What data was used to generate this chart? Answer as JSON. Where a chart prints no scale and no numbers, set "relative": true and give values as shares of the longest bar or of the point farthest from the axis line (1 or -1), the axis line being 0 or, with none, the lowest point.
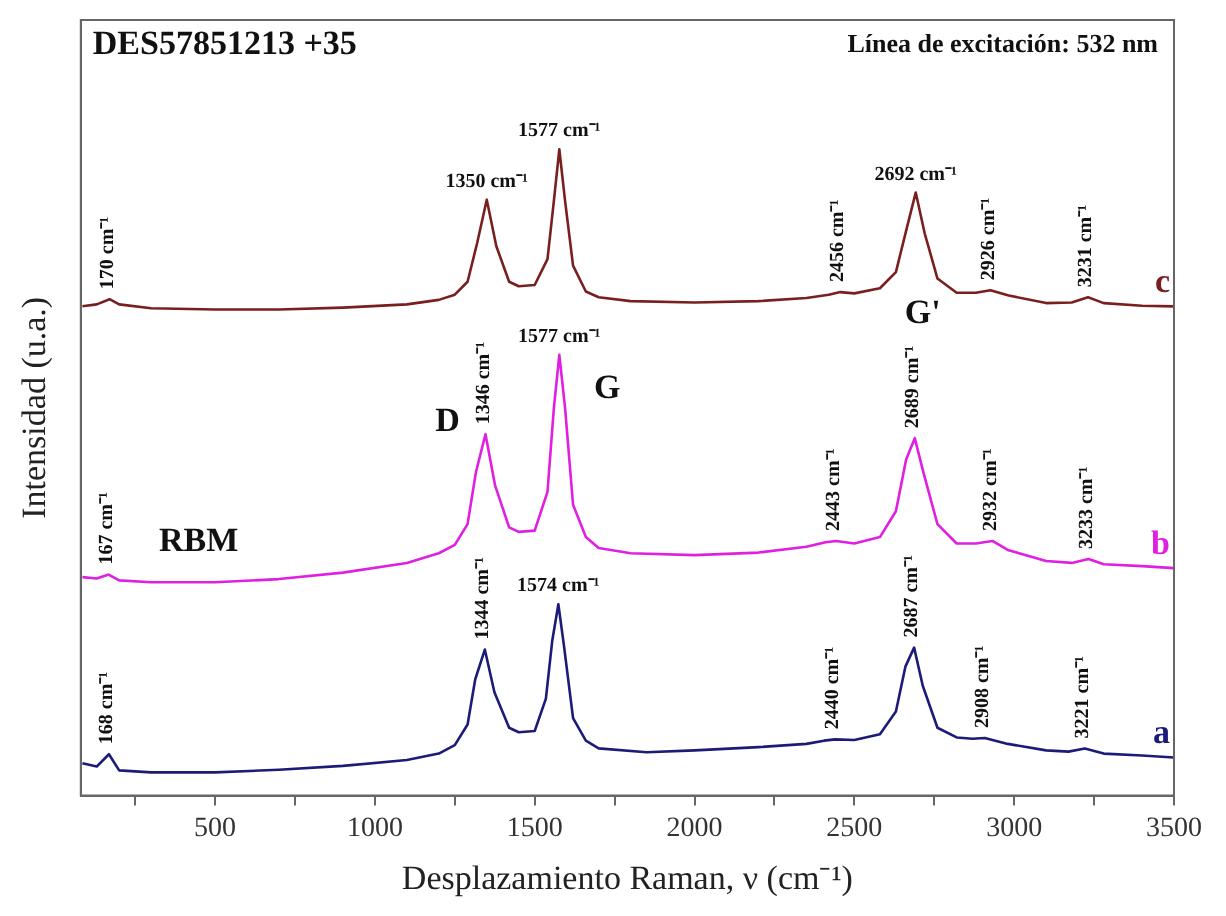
{
  "chart_data": {
    "type": "line",
    "xlabel": "Desplazamiento Raman, ν (cm⁻¹)",
    "ylabel": "Intensidad (u.a.)",
    "relative": true,
    "xlim": [
      80,
      3500
    ],
    "xticks": [
      {
        "value": 250,
        "label": null
      },
      500,
      {
        "value": 750,
        "label": null
      },
      1000,
      {
        "value": 1250,
        "label": null
      },
      1500,
      {
        "value": 1750,
        "label": null
      },
      2000,
      {
        "value": 2250,
        "label": null
      },
      2500,
      {
        "value": 2750,
        "label": null
      },
      3000,
      {
        "value": 3250,
        "label": null
      },
      3500
    ],
    "grid": false,
    "legend": false,
    "marker": "none",
    "line_style": "solid",
    "series": [
      {
        "name": "a",
        "color": "#1c1c78",
        "x": [
          85,
          130,
          168,
          200,
          300,
          500,
          700,
          900,
          1100,
          1200,
          1250,
          1290,
          1314,
          1344,
          1374,
          1420,
          1450,
          1500,
          1535,
          1555,
          1574,
          1592,
          1620,
          1660,
          1700,
          1850,
          2000,
          2200,
          2350,
          2405,
          2440,
          2500,
          2580,
          2630,
          2660,
          2687,
          2714,
          2760,
          2820,
          2870,
          2908,
          2980,
          3100,
          3170,
          3221,
          3280,
          3400,
          3500
        ],
        "values": [
          0.05,
          0.045,
          0.064,
          0.039,
          0.036,
          0.036,
          0.04,
          0.046,
          0.055,
          0.065,
          0.078,
          0.11,
          0.18,
          0.226,
          0.16,
          0.105,
          0.098,
          0.1,
          0.15,
          0.24,
          0.296,
          0.23,
          0.12,
          0.085,
          0.073,
          0.067,
          0.07,
          0.075,
          0.08,
          0.085,
          0.087,
          0.086,
          0.095,
          0.13,
          0.2,
          0.229,
          0.17,
          0.105,
          0.09,
          0.088,
          0.089,
          0.08,
          0.07,
          0.068,
          0.073,
          0.065,
          0.062,
          0.059
        ]
      },
      {
        "name": "b",
        "color": "#e020e0",
        "x": [
          85,
          130,
          167,
          200,
          300,
          500,
          700,
          900,
          1100,
          1200,
          1250,
          1290,
          1316,
          1346,
          1376,
          1420,
          1450,
          1500,
          1540,
          1560,
          1577,
          1595,
          1620,
          1660,
          1700,
          1800,
          2000,
          2200,
          2350,
          2410,
          2443,
          2500,
          2580,
          2630,
          2662,
          2689,
          2716,
          2760,
          2820,
          2880,
          2932,
          2980,
          3100,
          3180,
          3233,
          3280,
          3400,
          3500
        ],
        "values": [
          0.338,
          0.336,
          0.342,
          0.333,
          0.33,
          0.33,
          0.335,
          0.345,
          0.36,
          0.375,
          0.388,
          0.42,
          0.5,
          0.559,
          0.48,
          0.415,
          0.408,
          0.41,
          0.47,
          0.6,
          0.682,
          0.6,
          0.45,
          0.4,
          0.383,
          0.375,
          0.372,
          0.376,
          0.385,
          0.392,
          0.394,
          0.39,
          0.4,
          0.44,
          0.52,
          0.553,
          0.5,
          0.42,
          0.39,
          0.39,
          0.394,
          0.38,
          0.363,
          0.36,
          0.366,
          0.358,
          0.355,
          0.352
        ]
      },
      {
        "name": "c",
        "color": "#7a1f1f",
        "x": [
          85,
          130,
          170,
          200,
          300,
          500,
          700,
          900,
          1100,
          1200,
          1250,
          1290,
          1320,
          1350,
          1380,
          1420,
          1450,
          1500,
          1540,
          1560,
          1577,
          1595,
          1620,
          1660,
          1700,
          1800,
          2000,
          2200,
          2350,
          2420,
          2456,
          2500,
          2580,
          2630,
          2665,
          2692,
          2720,
          2760,
          2820,
          2880,
          2926,
          2980,
          3100,
          3180,
          3231,
          3280,
          3400,
          3500
        ],
        "values": [
          0.757,
          0.76,
          0.768,
          0.76,
          0.754,
          0.752,
          0.752,
          0.755,
          0.76,
          0.767,
          0.775,
          0.795,
          0.855,
          0.922,
          0.85,
          0.795,
          0.788,
          0.79,
          0.83,
          0.92,
          1.0,
          0.92,
          0.82,
          0.78,
          0.771,
          0.765,
          0.763,
          0.765,
          0.77,
          0.775,
          0.779,
          0.777,
          0.785,
          0.81,
          0.88,
          0.933,
          0.87,
          0.8,
          0.778,
          0.778,
          0.782,
          0.774,
          0.762,
          0.763,
          0.771,
          0.762,
          0.758,
          0.757
        ]
      }
    ],
    "annotations": [
      "DES57851213 +35",
      "Línea de excitación: 532 nm",
      {
        "text": "170 cm⁻¹",
        "x": 170,
        "y": 0.768
      },
      {
        "text": "1350 cm⁻¹",
        "x": 1350,
        "y": 0.922
      },
      {
        "text": "1577 cm⁻¹",
        "x": 1577,
        "y": 1.0
      },
      {
        "text": "2456 cm⁻¹",
        "x": 2456,
        "y": 0.779
      },
      {
        "text": "2692 cm⁻¹",
        "x": 2692,
        "y": 0.933
      },
      {
        "text": "2926 cm⁻¹",
        "x": 2926,
        "y": 0.782
      },
      {
        "text": "3231 cm⁻¹",
        "x": 3231,
        "y": 0.771
      },
      {
        "text": "167 cm⁻¹",
        "x": 167,
        "y": 0.342
      },
      {
        "text": "1346 cm⁻¹",
        "x": 1346,
        "y": 0.559
      },
      {
        "text": "1577 cm⁻¹",
        "x": 1577,
        "y": 0.682
      },
      {
        "text": "2443 cm⁻¹",
        "x": 2443,
        "y": 0.394
      },
      {
        "text": "2689 cm⁻¹",
        "x": 2689,
        "y": 0.553
      },
      {
        "text": "2932 cm⁻¹",
        "x": 2932,
        "y": 0.394
      },
      {
        "text": "3233 cm⁻¹",
        "x": 3233,
        "y": 0.366
      },
      {
        "text": "168 cm⁻¹",
        "x": 168,
        "y": 0.064
      },
      {
        "text": "1344 cm⁻¹",
        "x": 1344,
        "y": 0.226
      },
      {
        "text": "1574 cm⁻¹",
        "x": 1574,
        "y": 0.296
      },
      {
        "text": "2440 cm⁻¹",
        "x": 2440,
        "y": 0.087
      },
      {
        "text": "2687 cm⁻¹",
        "x": 2687,
        "y": 0.229
      },
      {
        "text": "2908 cm⁻¹",
        "x": 2908,
        "y": 0.089
      },
      {
        "text": "3221 cm⁻¹",
        "x": 3221,
        "y": 0.073
      },
      {
        "text": "D",
        "x": 1346,
        "y": 0.559
      },
      {
        "text": "G",
        "x": 1577,
        "y": 0.682
      },
      "G'",
      {
        "text": "RBM",
        "x": 167,
        "y": 0.342
      }
    ]
  }
}
